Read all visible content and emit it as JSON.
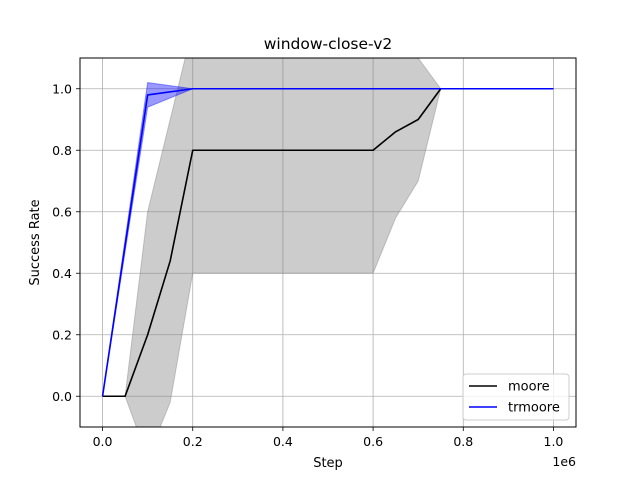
{
  "chart_data": {
    "type": "line",
    "title": "window-close-v2",
    "xlabel": "Step",
    "ylabel": "Success Rate",
    "x_offset_label": "1e6",
    "xlim": [
      -50000,
      1050000
    ],
    "ylim": [
      -0.1,
      1.1
    ],
    "x_ticks": [
      0,
      200000,
      400000,
      600000,
      800000,
      1000000
    ],
    "x_tick_labels": [
      "0.0",
      "0.2",
      "0.4",
      "0.6",
      "0.8",
      "1.0"
    ],
    "y_ticks": [
      0.0,
      0.2,
      0.4,
      0.6,
      0.8,
      1.0
    ],
    "y_tick_labels": [
      "0.0",
      "0.2",
      "0.4",
      "0.6",
      "0.8",
      "1.0"
    ],
    "grid": true,
    "legend_position": "lower-right",
    "series": [
      {
        "name": "moore",
        "color": "#000000",
        "band_color": "#808080",
        "x": [
          0,
          50000,
          100000,
          150000,
          200000,
          600000,
          650000,
          700000,
          750000,
          1000000
        ],
        "y": [
          0.0,
          0.0,
          0.2,
          0.44,
          0.8,
          0.8,
          0.86,
          0.9,
          1.0,
          1.0
        ],
        "upper": [
          0.0,
          0.0,
          0.6,
          0.9,
          1.2,
          1.2,
          1.14,
          1.1,
          1.0,
          1.0
        ],
        "lower": [
          0.0,
          0.0,
          -0.2,
          -0.02,
          0.4,
          0.4,
          0.58,
          0.7,
          1.0,
          1.0
        ]
      },
      {
        "name": "trmoore",
        "color": "#0000ff",
        "band_color": "#0000ff",
        "x": [
          0,
          100000,
          200000,
          1000000
        ],
        "y": [
          0.0,
          0.98,
          1.0,
          1.0
        ],
        "upper": [
          0.0,
          1.02,
          1.0,
          1.0
        ],
        "lower": [
          0.0,
          0.94,
          1.0,
          1.0
        ]
      }
    ]
  }
}
